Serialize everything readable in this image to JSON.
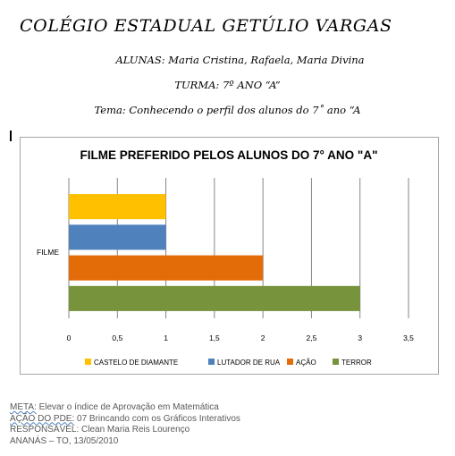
{
  "header": {
    "school": "COLÉGIO ESTADUAL GETÚLIO VARGAS",
    "students": "ALUNAS: Maria Cristina, Rafaela, Maria Divina",
    "class": "TURMA: 7º ANO “A”",
    "theme": "Tema: Conhecendo o perfil dos alunos do 7˚ ano “A"
  },
  "chart_data": {
    "type": "bar",
    "orientation": "horizontal",
    "title": "FILME PREFERIDO PELOS ALUNOS DO 7° ANO \"A\"",
    "categories": [
      "FILME"
    ],
    "series": [
      {
        "name": "CASTELO DE DIAMANTE",
        "values": [
          1
        ],
        "color": "#ffc000"
      },
      {
        "name": "LUTADOR DE RUA",
        "values": [
          1
        ],
        "color": "#4f81bd"
      },
      {
        "name": "AÇÃO",
        "values": [
          2
        ],
        "color": "#e36c09"
      },
      {
        "name": "TERROR",
        "values": [
          3
        ],
        "color": "#77933c"
      }
    ],
    "xlim": [
      0,
      3.5
    ],
    "ticks": [
      "0",
      "0,5",
      "1",
      "1,5",
      "2",
      "2,5",
      "3",
      "3,5"
    ],
    "grid": true,
    "legend_position": "bottom"
  },
  "footer": {
    "meta_label": "META:",
    "meta_text": " Elevar o índice de Aprovação em Matemática",
    "action_label": "AÇÃO DO PDE:",
    "action_text": " 07 Brincando com os Gráficos Interativos",
    "responsible": "RESPONSÁVEL: Clean Maria Reis Lourenço",
    "place_date": "ANANÁS – TO, 13/05/2010"
  }
}
